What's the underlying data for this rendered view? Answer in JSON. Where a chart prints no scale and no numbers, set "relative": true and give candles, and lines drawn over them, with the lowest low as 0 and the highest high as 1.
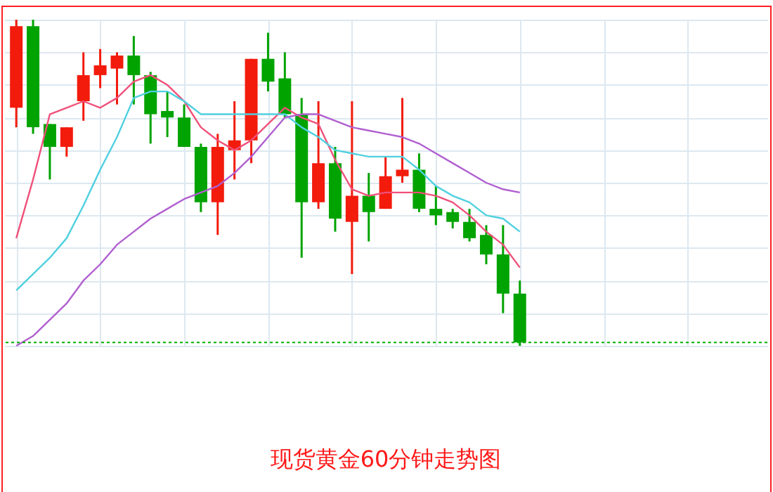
{
  "chart_data": {
    "type": "candlestick",
    "title": "现货黄金60分钟走势图",
    "relative": true,
    "grid": true,
    "categories": [
      null,
      null,
      null,
      null,
      null,
      null,
      null,
      null,
      null,
      null,
      null,
      null,
      null,
      null,
      null,
      null,
      null,
      null,
      null,
      null,
      null,
      null,
      null,
      null,
      null,
      null,
      null,
      null,
      null,
      null,
      null
    ],
    "ohlc": [
      [
        0.73,
        1.0,
        0.67,
        0.98
      ],
      [
        0.98,
        1.0,
        0.65,
        0.67
      ],
      [
        0.68,
        0.68,
        0.51,
        0.61
      ],
      [
        0.61,
        0.67,
        0.58,
        0.67
      ],
      [
        0.75,
        0.9,
        0.69,
        0.83
      ],
      [
        0.83,
        0.91,
        0.79,
        0.86
      ],
      [
        0.85,
        0.9,
        0.74,
        0.89
      ],
      [
        0.89,
        0.95,
        0.74,
        0.83
      ],
      [
        0.83,
        0.84,
        0.62,
        0.71
      ],
      [
        0.72,
        0.78,
        0.64,
        0.7
      ],
      [
        0.7,
        0.74,
        0.61,
        0.61
      ],
      [
        0.61,
        0.62,
        0.41,
        0.44
      ],
      [
        0.44,
        0.65,
        0.34,
        0.61
      ],
      [
        0.6,
        0.75,
        0.51,
        0.63
      ],
      [
        0.63,
        0.88,
        0.56,
        0.88
      ],
      [
        0.88,
        0.96,
        0.78,
        0.81
      ],
      [
        0.82,
        0.9,
        0.7,
        0.71
      ],
      [
        0.71,
        0.76,
        0.27,
        0.44
      ],
      [
        0.44,
        0.75,
        0.42,
        0.56
      ],
      [
        0.56,
        0.61,
        0.35,
        0.39
      ],
      [
        0.38,
        0.75,
        0.22,
        0.46
      ],
      [
        0.46,
        0.53,
        0.32,
        0.41
      ],
      [
        0.42,
        0.58,
        0.42,
        0.52
      ],
      [
        0.52,
        0.76,
        0.5,
        0.54
      ],
      [
        0.54,
        0.59,
        0.41,
        0.42
      ],
      [
        0.42,
        0.49,
        0.37,
        0.4
      ],
      [
        0.41,
        0.42,
        0.36,
        0.38
      ],
      [
        0.38,
        0.42,
        0.32,
        0.33
      ],
      [
        0.34,
        0.37,
        0.25,
        0.28
      ],
      [
        0.28,
        0.37,
        0.1,
        0.16
      ],
      [
        0.16,
        0.2,
        0.0,
        0.01
      ]
    ],
    "colors": [
      "#f21b0c",
      "#00a300",
      "#00a300",
      "#f21b0c",
      "#f21b0c",
      "#f21b0c",
      "#f21b0c",
      "#00a300",
      "#00a300",
      "#00a300",
      "#00a300",
      "#00a300",
      "#f21b0c",
      "#f21b0c",
      "#f21b0c",
      "#00a300",
      "#00a300",
      "#00a300",
      "#f21b0c",
      "#00a300",
      "#f21b0c",
      "#00a300",
      "#f21b0c",
      "#f21b0c",
      "#00a300",
      "#00a300",
      "#00a300",
      "#00a300",
      "#00a300",
      "#00a300",
      "#00a300"
    ],
    "series": [
      {
        "type": "line",
        "color": "#f0507a",
        "values": [
          0.33,
          0.51,
          0.71,
          0.73,
          0.75,
          0.73,
          0.76,
          0.81,
          0.83,
          0.8,
          0.75,
          0.67,
          0.63,
          0.6,
          0.63,
          0.68,
          0.73,
          0.7,
          0.68,
          0.57,
          0.48,
          0.46,
          0.47,
          0.47,
          0.47,
          0.46,
          0.44,
          0.4,
          0.35,
          0.31,
          0.24
        ]
      },
      {
        "type": "line",
        "color": "#4fd0e0",
        "values": [
          0.17,
          0.22,
          0.27,
          0.33,
          0.43,
          0.54,
          0.64,
          0.76,
          0.78,
          0.78,
          0.75,
          0.71,
          0.71,
          0.71,
          0.71,
          0.71,
          0.71,
          0.67,
          0.64,
          0.6,
          0.59,
          0.58,
          0.58,
          0.58,
          0.54,
          0.49,
          0.46,
          0.44,
          0.4,
          0.39,
          0.35
        ]
      },
      {
        "type": "line",
        "color": "#b05fd0",
        "values": [
          0.0,
          0.03,
          0.08,
          0.13,
          0.2,
          0.25,
          0.31,
          0.35,
          0.39,
          0.42,
          0.45,
          0.47,
          0.49,
          0.53,
          0.58,
          0.64,
          0.7,
          0.71,
          0.71,
          0.69,
          0.67,
          0.66,
          0.65,
          0.64,
          0.62,
          0.59,
          0.56,
          0.53,
          0.5,
          0.48,
          0.47
        ]
      }
    ],
    "ref_lines": [
      {
        "axis": "y",
        "value": 0.01,
        "color": "#00b000",
        "line_style": "dotted"
      }
    ]
  }
}
